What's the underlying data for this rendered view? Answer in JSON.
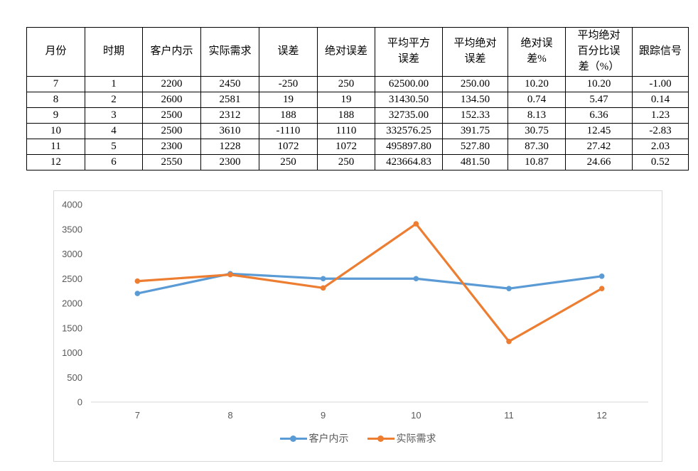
{
  "table": {
    "headers": [
      "月份",
      "时期",
      "客户内示",
      "实际需求",
      "误差",
      "绝对误差",
      "平均平方\n误差",
      "平均绝对\n误差",
      "绝对误\n差%",
      "平均绝对\n百分比误\n差（%）",
      "跟踪信号"
    ],
    "rows": [
      [
        "7",
        "1",
        "2200",
        "2450",
        "-250",
        "250",
        "62500.00",
        "250.00",
        "10.20",
        "10.20",
        "-1.00"
      ],
      [
        "8",
        "2",
        "2600",
        "2581",
        "19",
        "19",
        "31430.50",
        "134.50",
        "0.74",
        "5.47",
        "0.14"
      ],
      [
        "9",
        "3",
        "2500",
        "2312",
        "188",
        "188",
        "32735.00",
        "152.33",
        "8.13",
        "6.36",
        "1.23"
      ],
      [
        "10",
        "4",
        "2500",
        "3610",
        "-1110",
        "1110",
        "332576.25",
        "391.75",
        "30.75",
        "12.45",
        "-2.83"
      ],
      [
        "11",
        "5",
        "2300",
        "1228",
        "1072",
        "1072",
        "495897.80",
        "527.80",
        "87.30",
        "27.42",
        "2.03"
      ],
      [
        "12",
        "6",
        "2550",
        "2300",
        "250",
        "250",
        "423664.83",
        "481.50",
        "10.87",
        "24.66",
        "0.52"
      ]
    ]
  },
  "chart_data": {
    "type": "line",
    "title": "",
    "xlabel": "",
    "ylabel": "",
    "categories": [
      "7",
      "8",
      "9",
      "10",
      "11",
      "12"
    ],
    "series": [
      {
        "name": "客户内示",
        "color": "#5B9BD5",
        "values": [
          2200,
          2600,
          2500,
          2500,
          2300,
          2550
        ]
      },
      {
        "name": "实际需求",
        "color": "#ED7D31",
        "values": [
          2450,
          2581,
          2312,
          3610,
          1228,
          2300
        ]
      }
    ],
    "ylim": [
      0,
      4000
    ],
    "ytick_step": 500,
    "grid": false,
    "legend_position": "bottom",
    "marker": "circle",
    "axis_color": "#D9D9D9",
    "tick_label_color": "#595959"
  }
}
